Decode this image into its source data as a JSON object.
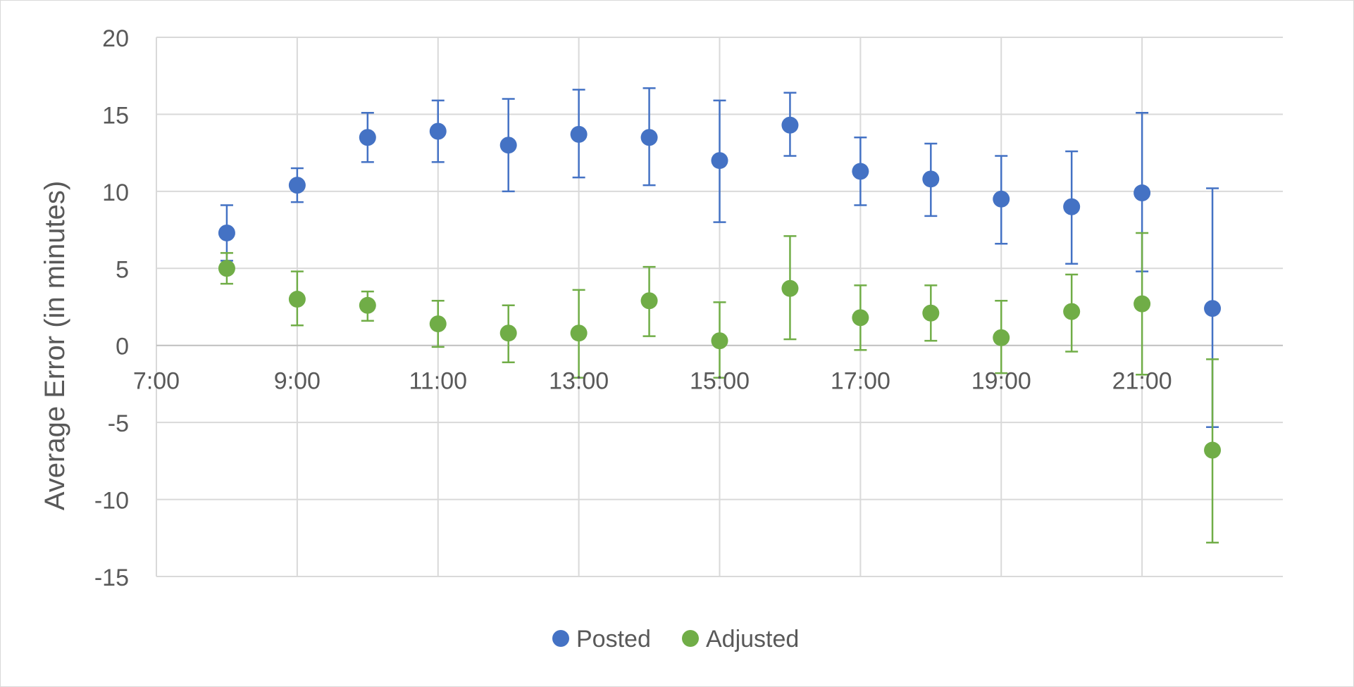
{
  "chart_data": {
    "type": "scatter",
    "title": "",
    "ylabel": "Average Error (in minutes)",
    "xlabel": "",
    "xlim": [
      "7:00",
      "23:00"
    ],
    "ylim": [
      -15,
      20
    ],
    "x_ticks": [
      "7:00",
      "9:00",
      "11:00",
      "13:00",
      "15:00",
      "17:00",
      "19:00",
      "21:00"
    ],
    "y_ticks": [
      20,
      15,
      10,
      5,
      0,
      -5,
      -10,
      -15
    ],
    "grid": true,
    "legend_position": "bottom",
    "x": [
      "8:00",
      "9:00",
      "10:00",
      "11:00",
      "12:00",
      "13:00",
      "14:00",
      "15:00",
      "16:00",
      "17:00",
      "18:00",
      "19:00",
      "20:00",
      "21:00",
      "22:00"
    ],
    "series": [
      {
        "name": "Posted",
        "color": "#4472c4",
        "values": [
          7.3,
          10.4,
          13.5,
          13.9,
          13.0,
          13.7,
          13.5,
          12.0,
          14.3,
          11.3,
          10.8,
          9.5,
          9.0,
          9.9,
          2.4
        ],
        "error_low": [
          5.5,
          9.3,
          11.9,
          11.9,
          10.0,
          10.9,
          10.4,
          8.0,
          12.3,
          9.1,
          8.4,
          6.6,
          5.3,
          4.8,
          -5.3
        ],
        "error_high": [
          9.1,
          11.5,
          15.1,
          15.9,
          16.0,
          16.6,
          16.7,
          15.9,
          16.4,
          13.5,
          13.1,
          12.3,
          12.6,
          15.1,
          10.2
        ]
      },
      {
        "name": "Adjusted",
        "color": "#70ad47",
        "values": [
          5.0,
          3.0,
          2.6,
          1.4,
          0.8,
          0.8,
          2.9,
          0.3,
          3.7,
          1.8,
          2.1,
          0.5,
          2.2,
          2.7,
          -6.8
        ],
        "error_low": [
          4.0,
          1.3,
          1.6,
          -0.1,
          -1.1,
          -2.1,
          0.6,
          -2.1,
          0.4,
          -0.3,
          0.3,
          -1.8,
          -0.4,
          -1.9,
          -12.8
        ],
        "error_high": [
          6.0,
          4.8,
          3.5,
          2.9,
          2.6,
          3.6,
          5.1,
          2.8,
          7.1,
          3.9,
          3.9,
          2.9,
          4.6,
          7.3,
          -0.9
        ]
      }
    ]
  }
}
